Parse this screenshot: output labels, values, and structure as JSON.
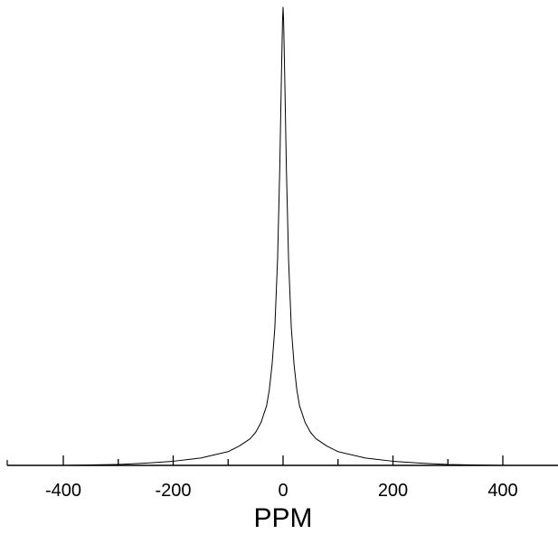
{
  "chart_data": {
    "type": "line",
    "xlabel": "PPM",
    "ylabel": "",
    "xlim": [
      -500,
      500
    ],
    "ylim": [
      0,
      1
    ],
    "xticks": [
      -400,
      -300,
      -200,
      -100,
      0,
      100,
      200,
      300,
      400
    ],
    "xtick_labels": [
      "-400",
      "-200",
      "0",
      "200",
      "400"
    ],
    "xtick_label_values": [
      -400,
      -200,
      0,
      200,
      400
    ],
    "grid": false,
    "series": [
      {
        "x": [
          -500,
          -400,
          -300,
          -250,
          -200,
          -150,
          -100,
          -80,
          -60,
          -50,
          -40,
          -30,
          -25,
          -20,
          -15,
          -10,
          -6,
          -3,
          -1,
          0,
          1,
          3,
          6,
          10,
          15,
          20,
          25,
          30,
          40,
          50,
          60,
          80,
          100,
          150,
          200,
          250,
          300,
          400,
          500
        ],
        "y": [
          0.0,
          0.0,
          0.002,
          0.005,
          0.009,
          0.016,
          0.03,
          0.042,
          0.058,
          0.072,
          0.094,
          0.13,
          0.165,
          0.22,
          0.3,
          0.45,
          0.65,
          0.85,
          0.97,
          1.0,
          0.97,
          0.85,
          0.65,
          0.45,
          0.3,
          0.22,
          0.165,
          0.13,
          0.094,
          0.072,
          0.058,
          0.042,
          0.03,
          0.016,
          0.009,
          0.005,
          0.002,
          0.0,
          0.0
        ]
      }
    ],
    "colors": {
      "line": "#000000",
      "axis": "#000000",
      "background": "#ffffff"
    }
  }
}
